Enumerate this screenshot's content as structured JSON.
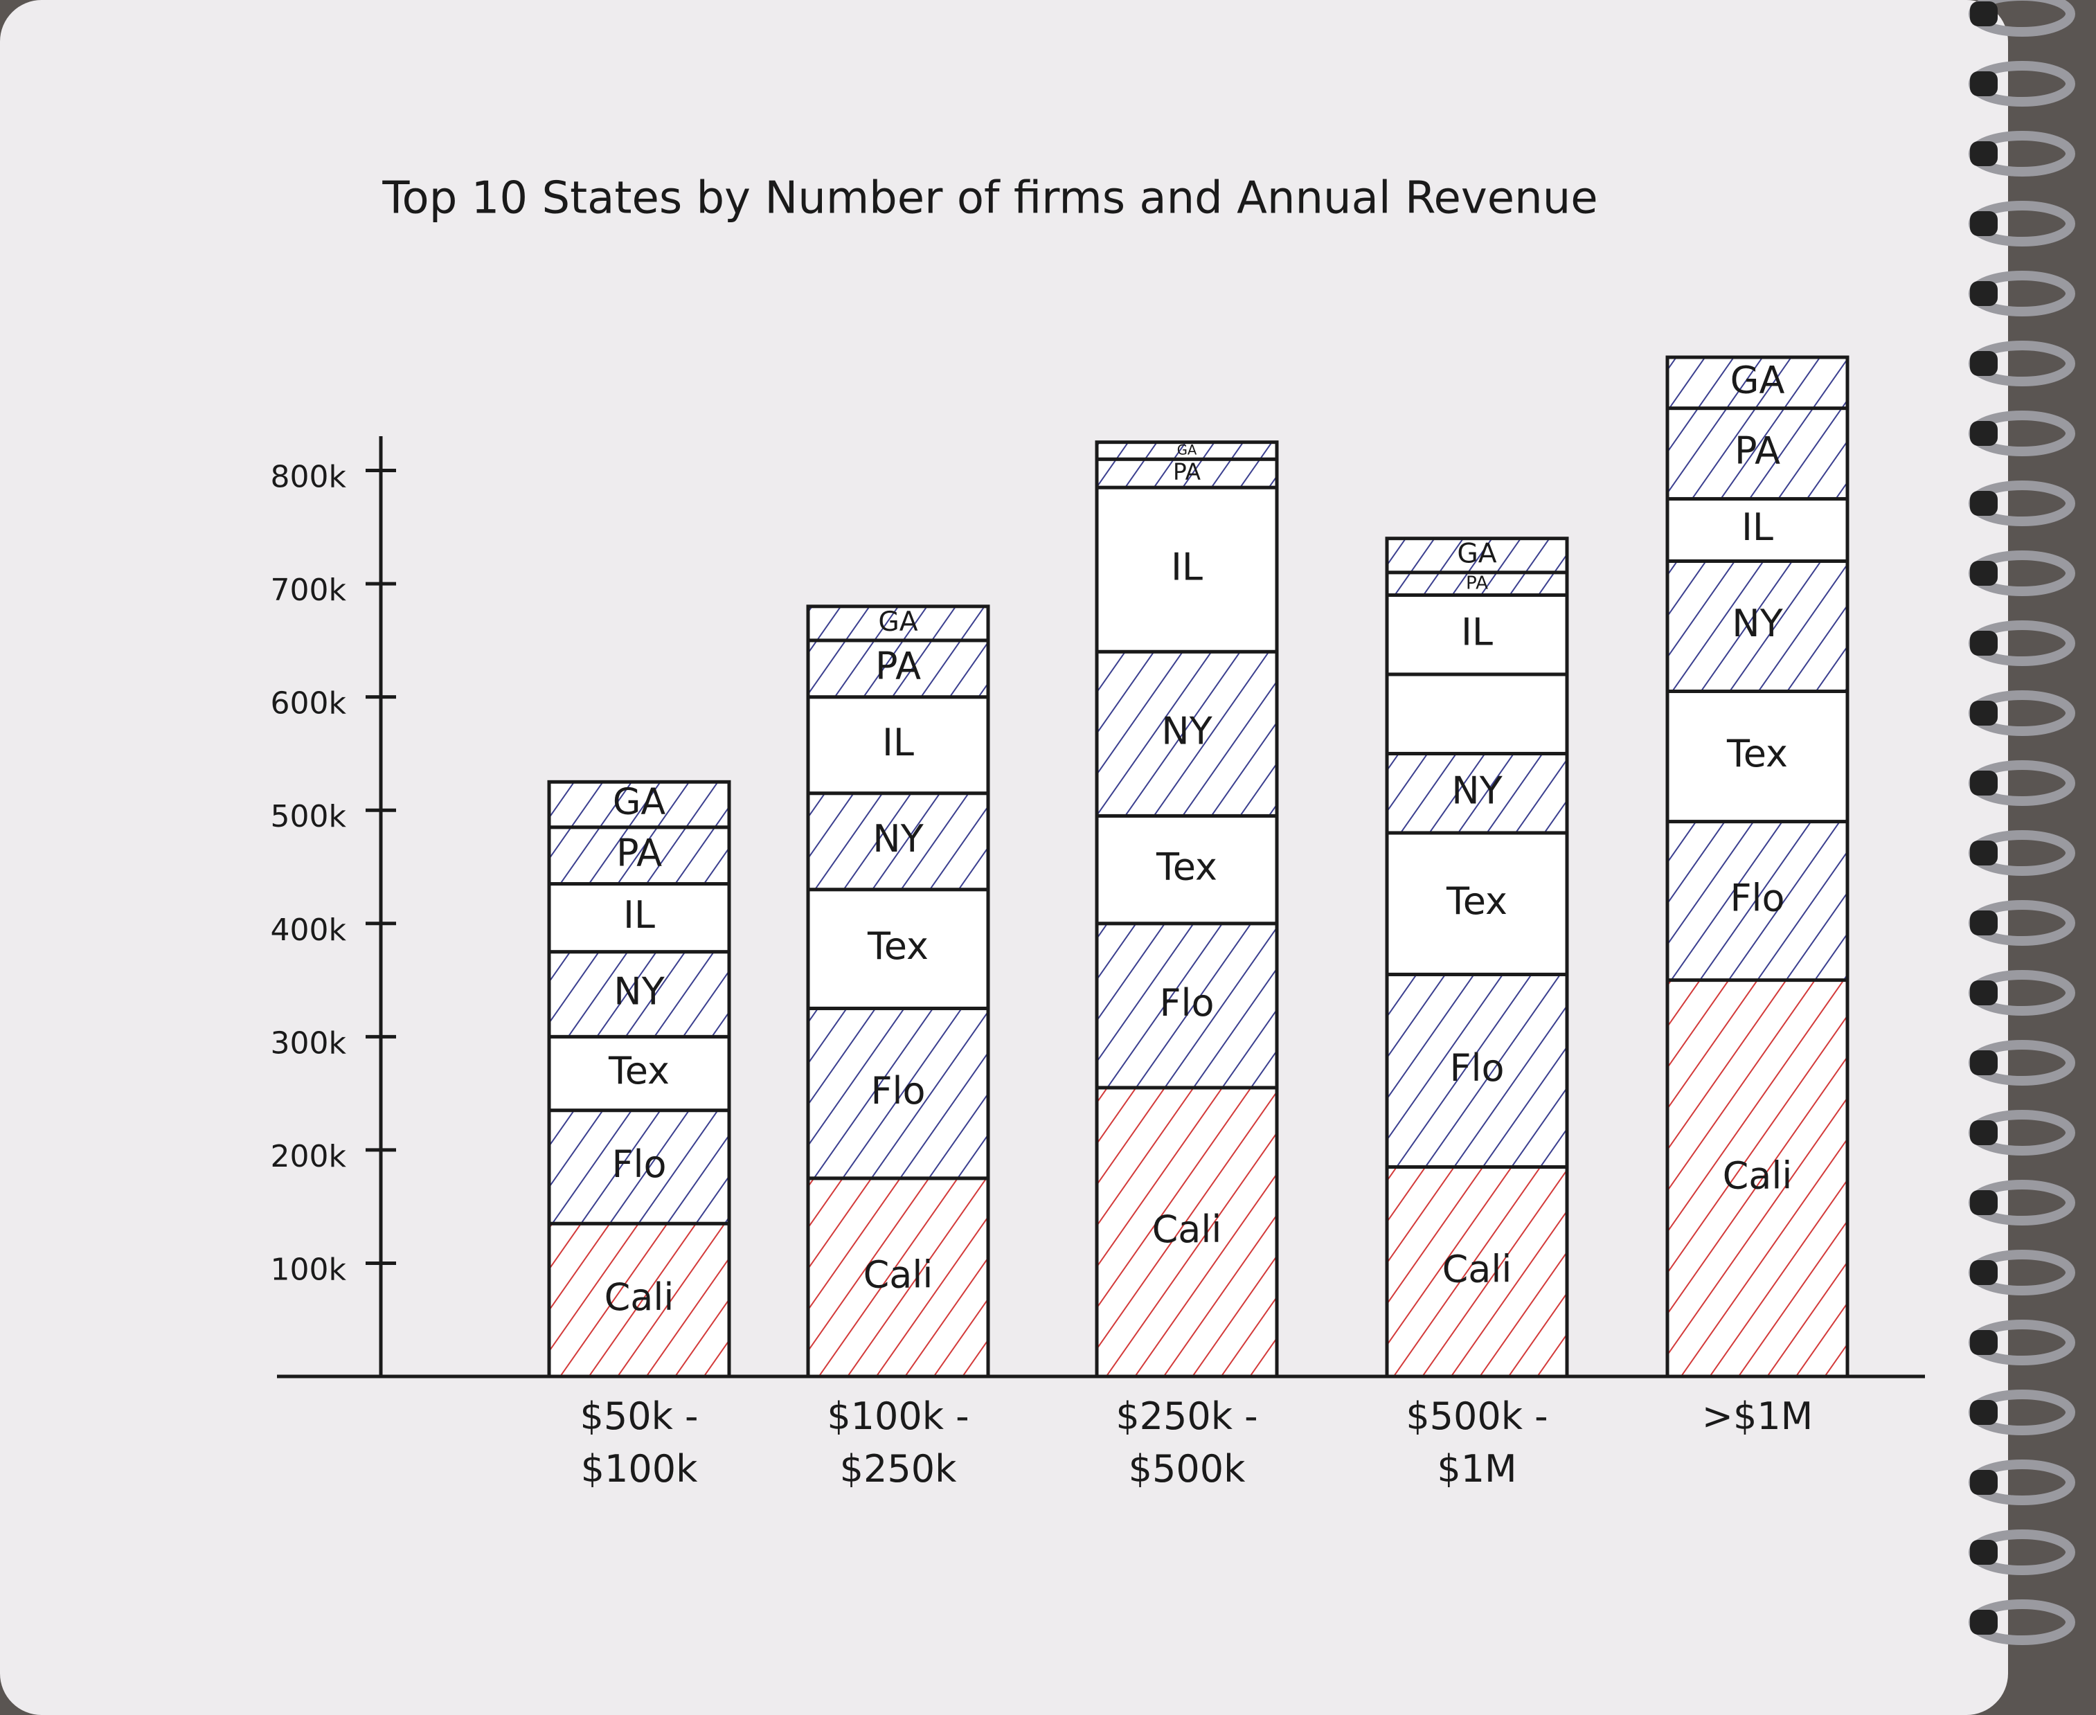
{
  "chart_data": {
    "type": "stacked-bar",
    "title": "Top 10 States by Number of firms and Annual Revenue",
    "categories": [
      "$50k - $100k",
      "$100k - $250k",
      "$250k - $500k",
      "$500k - $1M",
      ">$1M"
    ],
    "series": [
      {
        "name": "Cali",
        "color": "#d33a3a",
        "values": [
          135000,
          175000,
          255000,
          185000,
          350000
        ]
      },
      {
        "name": "Flo",
        "color": "#3b3f8f",
        "values": [
          100000,
          150000,
          145000,
          170000,
          140000
        ]
      },
      {
        "name": "Tex",
        "color": "#ffffff",
        "values": [
          65000,
          105000,
          95000,
          125000,
          115000
        ]
      },
      {
        "name": "NY",
        "color": "#3b3f8f",
        "values": [
          75000,
          85000,
          145000,
          70000,
          115000
        ]
      },
      {
        "name": null,
        "color": "#ffffff",
        "values": [
          null,
          null,
          null,
          70000,
          null
        ]
      },
      {
        "name": "IL",
        "color": "#ffffff",
        "values": [
          60000,
          85000,
          145000,
          70000,
          55000
        ]
      },
      {
        "name": "PA",
        "color": "#3b3f8f",
        "values": [
          50000,
          50000,
          25000,
          20000,
          80000
        ]
      },
      {
        "name": "GA",
        "color": "#3b3f8f",
        "values": [
          40000,
          30000,
          15000,
          30000,
          45000
        ]
      }
    ],
    "ylim": [
      0,
      900000
    ],
    "yticks": [
      {
        "value": 100000,
        "label": "100k"
      },
      {
        "value": 200000,
        "label": "200k"
      },
      {
        "value": 300000,
        "label": "300k"
      },
      {
        "value": 400000,
        "label": "400k"
      },
      {
        "value": 500000,
        "label": "500k"
      },
      {
        "value": 600000,
        "label": "600k"
      },
      {
        "value": 700000,
        "label": "700k"
      },
      {
        "value": 800000,
        "label": "800k"
      }
    ]
  }
}
